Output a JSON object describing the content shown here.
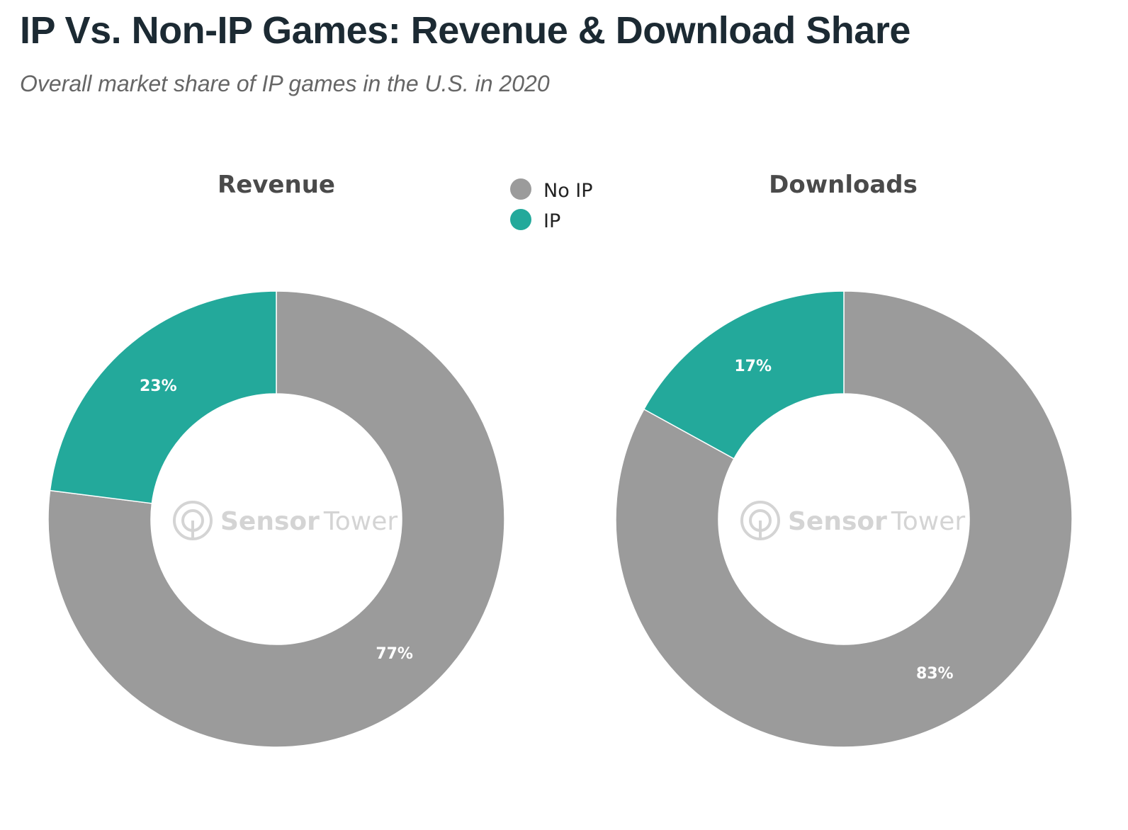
{
  "title": "IP Vs. Non-IP Games: Revenue & Download Share",
  "subtitle": "Overall market share of IP games in the U.S. in 2020",
  "watermark": {
    "brand_bold": "Sensor",
    "brand_light": "Tower"
  },
  "legend": {
    "position": "top-center",
    "items": [
      {
        "label": "No IP",
        "color": "#9b9b9b"
      },
      {
        "label": "IP",
        "color": "#23a99b"
      }
    ]
  },
  "chart_data": [
    {
      "type": "pie",
      "style": "donut",
      "title": "Revenue",
      "series": [
        {
          "name": "No IP",
          "value": 77,
          "label": "77%",
          "color": "#9b9b9b"
        },
        {
          "name": "IP",
          "value": 23,
          "label": "23%",
          "color": "#23a99b"
        }
      ]
    },
    {
      "type": "pie",
      "style": "donut",
      "title": "Downloads",
      "series": [
        {
          "name": "No IP",
          "value": 83,
          "label": "83%",
          "color": "#9b9b9b"
        },
        {
          "name": "IP",
          "value": 17,
          "label": "17%",
          "color": "#23a99b"
        }
      ]
    }
  ]
}
